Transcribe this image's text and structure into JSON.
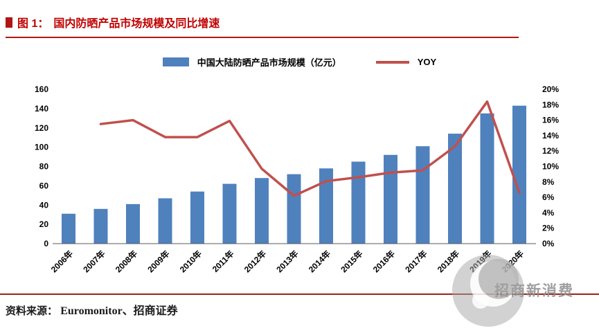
{
  "figure": {
    "label": "图 1：",
    "title": "国内防晒产品市场规模及同比增速"
  },
  "legend": [
    {
      "type": "bar",
      "label": "中国大陆防晒产品市场规模（亿元）",
      "color": "#4F81BD"
    },
    {
      "type": "line",
      "label": "YOY",
      "color": "#C0504D"
    }
  ],
  "source": {
    "label": "资料来源：",
    "text": "Euromonitor、招商证券"
  },
  "watermark": {
    "text": "招商新消费"
  },
  "chart_data": {
    "type": "bar",
    "title": "国内防晒产品市场规模及同比增速",
    "categories": [
      "2006年",
      "2007年",
      "2008年",
      "2009年",
      "2010年",
      "2011年",
      "2012年",
      "2013年",
      "2014年",
      "2015年",
      "2016年",
      "2017年",
      "2018年",
      "2019年",
      "2020年"
    ],
    "series": [
      {
        "name": "中国大陆防晒产品市场规模（亿元）",
        "type": "bar",
        "axis": "left",
        "values": [
          31,
          36,
          41,
          47,
          54,
          62,
          68,
          72,
          78,
          85,
          92,
          101,
          114,
          135,
          143
        ]
      },
      {
        "name": "YOY",
        "type": "line",
        "axis": "right",
        "values": [
          null,
          15.5,
          16.0,
          13.8,
          13.8,
          15.9,
          9.7,
          6.2,
          8.1,
          8.6,
          9.2,
          9.5,
          12.6,
          18.4,
          6.6
        ]
      }
    ],
    "left_axis": {
      "min": 0,
      "max": 160,
      "step": 20,
      "suffix": ""
    },
    "right_axis": {
      "min": 0,
      "max": 20,
      "step": 2,
      "suffix": "%"
    },
    "grid": false,
    "legend_position": "top",
    "colors": {
      "bar": "#4F81BD",
      "line": "#C0504D"
    }
  }
}
